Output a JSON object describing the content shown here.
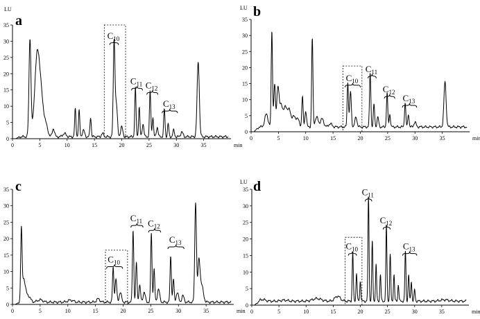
{
  "chart_data": [
    {
      "type": "line",
      "panel": "a",
      "ylabel": "LU",
      "xlabel": "min",
      "xlim": [
        0,
        40
      ],
      "ylim": [
        0,
        35
      ],
      "xticks": [
        0,
        5,
        10,
        15,
        20,
        25,
        30,
        35
      ],
      "yticks": [
        0,
        5,
        10,
        15,
        20,
        25,
        30,
        35
      ],
      "baseline": 0.6,
      "peaks": [
        [
          3.2,
          30,
          0.18
        ],
        [
          4.5,
          24,
          0.45
        ],
        [
          5.2,
          10,
          0.4
        ],
        [
          6.0,
          4,
          0.4
        ],
        [
          7.5,
          2.5,
          0.2
        ],
        [
          9.5,
          1,
          0.3
        ],
        [
          11.5,
          8.5,
          0.12
        ],
        [
          12.2,
          8,
          0.12
        ],
        [
          13.0,
          2,
          0.2
        ],
        [
          14.3,
          6,
          0.12
        ],
        [
          16.5,
          1,
          0.2
        ],
        [
          18.6,
          29,
          0.15
        ],
        [
          19.0,
          10,
          0.2
        ],
        [
          20.0,
          3,
          0.2
        ],
        [
          22.5,
          15,
          0.12
        ],
        [
          23.2,
          9,
          0.12
        ],
        [
          23.9,
          4,
          0.15
        ],
        [
          25.2,
          14,
          0.12
        ],
        [
          25.7,
          6,
          0.12
        ],
        [
          26.5,
          3,
          0.15
        ],
        [
          27.8,
          8.5,
          0.12
        ],
        [
          28.5,
          4,
          0.12
        ],
        [
          29.5,
          2,
          0.15
        ],
        [
          31.0,
          1.5,
          0.2
        ],
        [
          34.0,
          23,
          0.2
        ]
      ],
      "annotations": [
        {
          "label": "C",
          "sub": "10",
          "x": [
            17.8,
            19.4
          ],
          "y": 29.5
        },
        {
          "label": "C",
          "sub": "11",
          "x": [
            21.8,
            23.8
          ],
          "y": 15.5
        },
        {
          "label": "C",
          "sub": "12",
          "x": [
            24.6,
            26.6
          ],
          "y": 14.2
        },
        {
          "label": "C",
          "sub": "13",
          "x": [
            27.4,
            30.2
          ],
          "y": 8.5
        }
      ],
      "highlight": {
        "x": [
          16.8,
          20.7
        ],
        "y": [
          0,
          35
        ]
      }
    },
    {
      "type": "line",
      "panel": "b",
      "ylabel": "LU",
      "xlabel": "min",
      "xlim": [
        0,
        40
      ],
      "ylim": [
        0,
        35
      ],
      "xticks": [
        0,
        5,
        10,
        15,
        20,
        25,
        30,
        35
      ],
      "yticks": [
        0,
        5,
        10,
        15,
        20,
        25,
        30,
        35
      ],
      "baseline": 1.5,
      "peaks": [
        [
          2.8,
          4,
          0.3
        ],
        [
          3.8,
          30,
          0.12
        ],
        [
          4.3,
          13,
          0.15
        ],
        [
          4.9,
          12,
          0.2
        ],
        [
          5.5,
          7,
          0.3
        ],
        [
          6.3,
          6,
          0.3
        ],
        [
          7.0,
          5,
          0.3
        ],
        [
          7.8,
          3,
          0.3
        ],
        [
          8.5,
          2.5,
          0.3
        ],
        [
          9.4,
          9.5,
          0.12
        ],
        [
          10.0,
          5,
          0.15
        ],
        [
          11.2,
          27.5,
          0.12
        ],
        [
          12.0,
          3,
          0.3
        ],
        [
          13.0,
          2.5,
          0.3
        ],
        [
          14.5,
          1,
          0.3
        ],
        [
          17.7,
          14,
          0.12
        ],
        [
          18.2,
          11,
          0.15
        ],
        [
          19.2,
          3,
          0.2
        ],
        [
          21.8,
          17,
          0.12
        ],
        [
          22.5,
          7,
          0.12
        ],
        [
          23.2,
          3,
          0.15
        ],
        [
          24.9,
          10.5,
          0.12
        ],
        [
          25.4,
          4,
          0.12
        ],
        [
          28.2,
          7.5,
          0.12
        ],
        [
          28.8,
          4,
          0.12
        ],
        [
          30.0,
          1.5,
          0.2
        ],
        [
          35.5,
          14,
          0.2
        ]
      ],
      "annotations": [
        {
          "label": "C",
          "sub": "10",
          "x": [
            17.2,
            20.0
          ],
          "y": 14.5
        },
        {
          "label": "C",
          "sub": "11",
          "x": [
            21.4,
            22.9
          ],
          "y": 17.3
        },
        {
          "label": "C",
          "sub": "12",
          "x": [
            24.4,
            26.3
          ],
          "y": 11.0
        },
        {
          "label": "C",
          "sub": "13",
          "x": [
            27.7,
            30.3
          ],
          "y": 8.2
        }
      ],
      "highlight": {
        "x": [
          16.8,
          20.3
        ],
        "y": [
          0,
          20.5
        ]
      }
    },
    {
      "type": "line",
      "panel": "c",
      "ylabel": "",
      "xlabel": "min",
      "xlim": [
        0,
        40
      ],
      "ylim": [
        0,
        35
      ],
      "xticks": [
        0,
        5,
        10,
        15,
        20,
        25,
        30,
        35
      ],
      "yticks": [
        0,
        5,
        10,
        15,
        20,
        25,
        30,
        35
      ],
      "baseline": 0.7,
      "peaks": [
        [
          1.6,
          20,
          0.12
        ],
        [
          2.0,
          7,
          0.3
        ],
        [
          2.8,
          2,
          0.4
        ],
        [
          5.0,
          0.7,
          0.5
        ],
        [
          10.5,
          0.6,
          0.5
        ],
        [
          15.5,
          1,
          0.3
        ],
        [
          18.2,
          10.5,
          0.12
        ],
        [
          18.7,
          7,
          0.15
        ],
        [
          19.5,
          3,
          0.2
        ],
        [
          21.8,
          22,
          0.12
        ],
        [
          22.4,
          12,
          0.12
        ],
        [
          23.0,
          5,
          0.15
        ],
        [
          23.8,
          3,
          0.2
        ],
        [
          25.1,
          21,
          0.12
        ],
        [
          25.6,
          10,
          0.12
        ],
        [
          26.4,
          4,
          0.2
        ],
        [
          28.6,
          14,
          0.12
        ],
        [
          29.1,
          7,
          0.12
        ],
        [
          29.8,
          3,
          0.2
        ],
        [
          30.8,
          2,
          0.2
        ],
        [
          33.1,
          30.5,
          0.15
        ],
        [
          33.7,
          12,
          0.2
        ],
        [
          34.2,
          5,
          0.3
        ]
      ],
      "annotations": [
        {
          "label": "C",
          "sub": "10",
          "x": [
            17.0,
            19.9
          ],
          "y": 11.5
        },
        {
          "label": "C",
          "sub": "11",
          "x": [
            21.4,
            23.6
          ],
          "y": 24.0
        },
        {
          "label": "C",
          "sub": "12",
          "x": [
            24.6,
            26.8
          ],
          "y": 22.5
        },
        {
          "label": "C",
          "sub": "13",
          "x": [
            28.1,
            31.0
          ],
          "y": 17.5
        }
      ],
      "highlight": {
        "x": [
          16.8,
          20.8
        ],
        "y": [
          0,
          16.5
        ]
      }
    },
    {
      "type": "line",
      "panel": "d",
      "ylabel": "LU",
      "xlabel": "min",
      "xlim": [
        0,
        40
      ],
      "ylim": [
        0,
        35
      ],
      "xticks": [
        0,
        5,
        10,
        15,
        20,
        25,
        30,
        35
      ],
      "yticks": [
        0,
        5,
        10,
        15,
        20,
        25,
        30,
        35
      ],
      "baseline": 1.2,
      "peaks": [
        [
          2.0,
          0.5,
          0.5
        ],
        [
          6.0,
          0.3,
          0.6
        ],
        [
          12.0,
          0.8,
          0.8
        ],
        [
          15.8,
          1.5,
          0.5
        ],
        [
          18.6,
          15,
          0.1
        ],
        [
          19.3,
          8.5,
          0.1
        ],
        [
          20.0,
          6,
          0.1
        ],
        [
          21.5,
          31.5,
          0.1
        ],
        [
          22.2,
          18,
          0.1
        ],
        [
          22.9,
          11,
          0.1
        ],
        [
          23.7,
          8,
          0.1
        ],
        [
          24.8,
          23,
          0.1
        ],
        [
          25.5,
          14,
          0.1
        ],
        [
          26.2,
          8,
          0.1
        ],
        [
          27.0,
          5,
          0.1
        ],
        [
          28.3,
          15,
          0.1
        ],
        [
          28.9,
          8,
          0.1
        ],
        [
          29.4,
          6,
          0.1
        ],
        [
          30.0,
          3.5,
          0.1
        ],
        [
          35.5,
          0.4,
          0.8
        ]
      ],
      "annotations": [
        {
          "label": "C",
          "sub": "10",
          "x": [
            17.8,
            19.3
          ],
          "y": 15.6
        },
        {
          "label": "C",
          "sub": "11",
          "x": [
            20.9,
            22.1
          ],
          "y": 32.0
        },
        {
          "label": "C",
          "sub": "12",
          "x": [
            24.2,
            25.5
          ],
          "y": 23.5
        },
        {
          "label": "C",
          "sub": "13",
          "x": [
            27.8,
            30.4
          ],
          "y": 15.6
        }
      ],
      "highlight": {
        "x": [
          17.2,
          20.3
        ],
        "y": [
          0,
          20.5
        ]
      }
    }
  ],
  "layout_hint": {
    "grid": "2x2"
  }
}
